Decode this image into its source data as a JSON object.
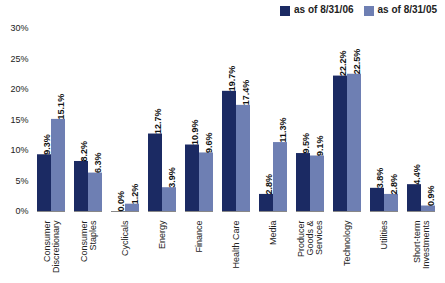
{
  "chart_data": {
    "type": "bar",
    "categories": [
      "Consumer Discretionary",
      "Consumer Staples",
      "Cyclicals",
      "Energy",
      "Finance",
      "Health Care",
      "Media",
      "Producer Goods & Services",
      "Technology",
      "Utilities",
      "Short-term Investments"
    ],
    "series": [
      {
        "name": "as of 8/31/06",
        "color": "#1b2a63",
        "values": [
          9.3,
          8.2,
          0.0,
          12.7,
          10.9,
          19.7,
          2.8,
          9.5,
          22.2,
          3.8,
          4.4
        ],
        "value_labels": [
          "9.3%",
          "8.2%",
          "0.0%",
          "12.7%",
          "10.9%",
          "19.7%",
          "2.8%",
          "9.5%",
          "22.2%",
          "3.8%",
          "4.4%"
        ]
      },
      {
        "name": "as of 8/31/05",
        "color": "#6e7fb3",
        "values": [
          15.1,
          6.3,
          1.2,
          3.9,
          9.6,
          17.4,
          11.3,
          9.1,
          22.5,
          2.8,
          0.9
        ],
        "value_labels": [
          "15.1%",
          "6.3%",
          "1.2%",
          "3.9%",
          "9.6%",
          "17.4%",
          "11.3%",
          "9.1%",
          "22.5%",
          "2.8%",
          "0.9%"
        ]
      }
    ],
    "ylim": [
      0,
      30
    ],
    "yticks": [
      {
        "value": 0,
        "label": "0%"
      },
      {
        "value": 5,
        "label": "5%"
      },
      {
        "value": 10,
        "label": "10%"
      },
      {
        "value": 15,
        "label": "15%"
      },
      {
        "value": 20,
        "label": "20%"
      },
      {
        "value": 25,
        "label": "25%"
      },
      {
        "value": 30,
        "label": "30%"
      }
    ],
    "grid": false,
    "data_labels": true,
    "legend": "top-right"
  }
}
